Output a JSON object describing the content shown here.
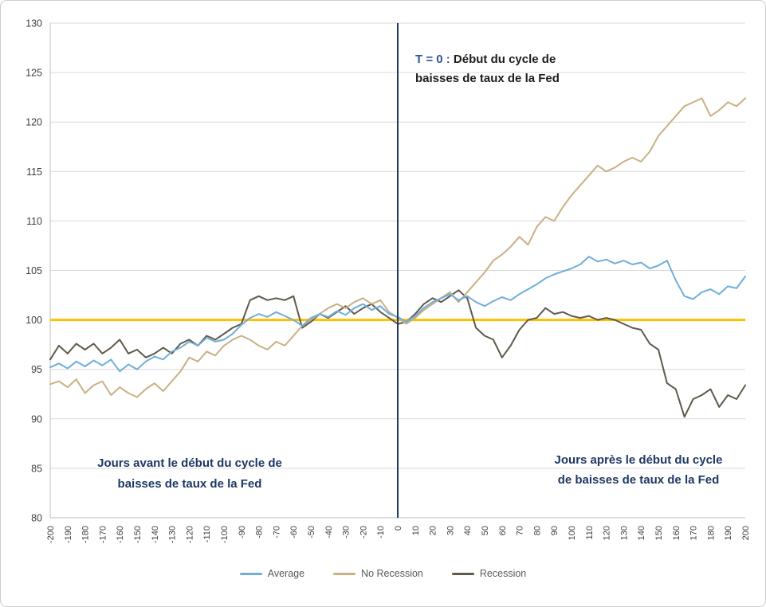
{
  "annotations": {
    "t0_prefix": "T = 0 :",
    "t0_line1_rest": " Début du cycle de",
    "t0_line2": "baisses de taux de la Fed",
    "before_line1": "Jours avant le début du cycle de",
    "before_line2": "baisses de taux de la Fed",
    "after_line1": "Jours après le début du cycle",
    "after_line2": "de baisses de taux de la Fed"
  },
  "chart_data": {
    "type": "line",
    "title": "",
    "xlabel": "",
    "ylabel": "",
    "xlim": [
      -200,
      200
    ],
    "ylim": [
      80,
      130
    ],
    "grid": "horizontal",
    "legend_position": "bottom",
    "y_ticks": [
      80,
      85,
      90,
      95,
      100,
      105,
      110,
      115,
      120,
      125,
      130
    ],
    "x_ticks": [
      -200,
      -190,
      -180,
      -170,
      -160,
      -150,
      -140,
      -130,
      -120,
      -110,
      -100,
      -90,
      -80,
      -70,
      -60,
      -50,
      -40,
      -30,
      -20,
      -10,
      0,
      10,
      20,
      30,
      40,
      50,
      60,
      70,
      80,
      90,
      100,
      110,
      120,
      130,
      140,
      150,
      160,
      170,
      180,
      190,
      200
    ],
    "reference_lines": {
      "horizontal_y": 100,
      "vertical_x": 0
    },
    "colors": {
      "grid": "#D9D9D9",
      "axis": "#BFBFBF",
      "axis_text": "#404040",
      "baseline": "#FFC000",
      "t0_line": "#1F3864"
    },
    "x": [
      -200,
      -195,
      -190,
      -185,
      -180,
      -175,
      -170,
      -165,
      -160,
      -155,
      -150,
      -145,
      -140,
      -135,
      -130,
      -125,
      -120,
      -115,
      -110,
      -105,
      -100,
      -95,
      -90,
      -85,
      -80,
      -75,
      -70,
      -65,
      -60,
      -55,
      -50,
      -45,
      -40,
      -35,
      -30,
      -25,
      -20,
      -15,
      -10,
      -5,
      0,
      5,
      10,
      15,
      20,
      25,
      30,
      35,
      40,
      45,
      50,
      55,
      60,
      65,
      70,
      75,
      80,
      85,
      90,
      95,
      100,
      105,
      110,
      115,
      120,
      125,
      130,
      135,
      140,
      145,
      150,
      155,
      160,
      165,
      170,
      175,
      180,
      185,
      190,
      195,
      200
    ],
    "series": [
      {
        "name": "Average",
        "color": "#6FAEDB",
        "values": [
          95.2,
          95.6,
          95.1,
          95.8,
          95.3,
          95.9,
          95.4,
          96.0,
          94.8,
          95.5,
          95.0,
          95.8,
          96.3,
          96.0,
          96.8,
          97.2,
          97.8,
          97.4,
          98.2,
          97.8,
          98.0,
          98.6,
          99.5,
          100.2,
          100.6,
          100.3,
          100.8,
          100.4,
          100.0,
          99.4,
          100.2,
          100.6,
          100.3,
          100.9,
          100.5,
          101.2,
          101.6,
          101.0,
          101.4,
          100.6,
          100.3,
          99.8,
          100.4,
          101.2,
          101.8,
          102.2,
          102.6,
          102.0,
          102.4,
          101.8,
          101.4,
          101.9,
          102.3,
          102.0,
          102.6,
          103.1,
          103.6,
          104.2,
          104.6,
          104.9,
          105.2,
          105.6,
          106.4,
          105.9,
          106.1,
          105.7,
          106.0,
          105.6,
          105.8,
          105.2,
          105.5,
          106.0,
          104.0,
          102.4,
          102.1,
          102.8,
          103.1,
          102.6,
          103.4,
          103.2,
          104.4
        ]
      },
      {
        "name": "No Recession",
        "color": "#C8B083",
        "values": [
          93.5,
          93.8,
          93.2,
          94.0,
          92.6,
          93.4,
          93.8,
          92.4,
          93.2,
          92.6,
          92.2,
          93.0,
          93.6,
          92.8,
          93.8,
          94.8,
          96.2,
          95.8,
          96.8,
          96.4,
          97.4,
          98.0,
          98.4,
          98.0,
          97.4,
          97.0,
          97.8,
          97.4,
          98.4,
          99.4,
          100.0,
          100.6,
          101.2,
          101.6,
          101.2,
          101.8,
          102.2,
          101.6,
          102.0,
          100.8,
          100.2,
          99.6,
          100.2,
          101.0,
          101.6,
          102.2,
          102.8,
          101.8,
          102.8,
          103.8,
          104.8,
          106.0,
          106.6,
          107.4,
          108.4,
          107.6,
          109.4,
          110.4,
          110.0,
          111.4,
          112.6,
          113.6,
          114.6,
          115.6,
          115.0,
          115.4,
          116.0,
          116.4,
          116.0,
          117.0,
          118.6,
          119.6,
          120.6,
          121.6,
          122.0,
          122.4,
          120.6,
          121.2,
          122.0,
          121.6,
          122.4
        ]
      },
      {
        "name": "Recession",
        "color": "#60594A",
        "values": [
          96.0,
          97.4,
          96.6,
          97.6,
          97.0,
          97.6,
          96.6,
          97.2,
          98.0,
          96.6,
          97.0,
          96.2,
          96.6,
          97.2,
          96.6,
          97.6,
          98.0,
          97.4,
          98.4,
          98.0,
          98.6,
          99.2,
          99.6,
          102.0,
          102.4,
          102.0,
          102.2,
          102.0,
          102.4,
          99.2,
          99.8,
          100.6,
          100.2,
          100.8,
          101.4,
          100.6,
          101.2,
          101.6,
          100.8,
          100.2,
          99.6,
          99.8,
          100.6,
          101.6,
          102.2,
          101.8,
          102.4,
          103.0,
          102.2,
          99.2,
          98.4,
          98.0,
          96.2,
          97.4,
          99.0,
          100.0,
          100.2,
          101.2,
          100.6,
          100.8,
          100.4,
          100.2,
          100.4,
          100.0,
          100.2,
          100.0,
          99.6,
          99.2,
          99.0,
          97.6,
          97.0,
          93.6,
          93.0,
          90.2,
          92.0,
          92.4,
          93.0,
          91.2,
          92.4,
          92.0,
          93.4
        ]
      }
    ]
  }
}
